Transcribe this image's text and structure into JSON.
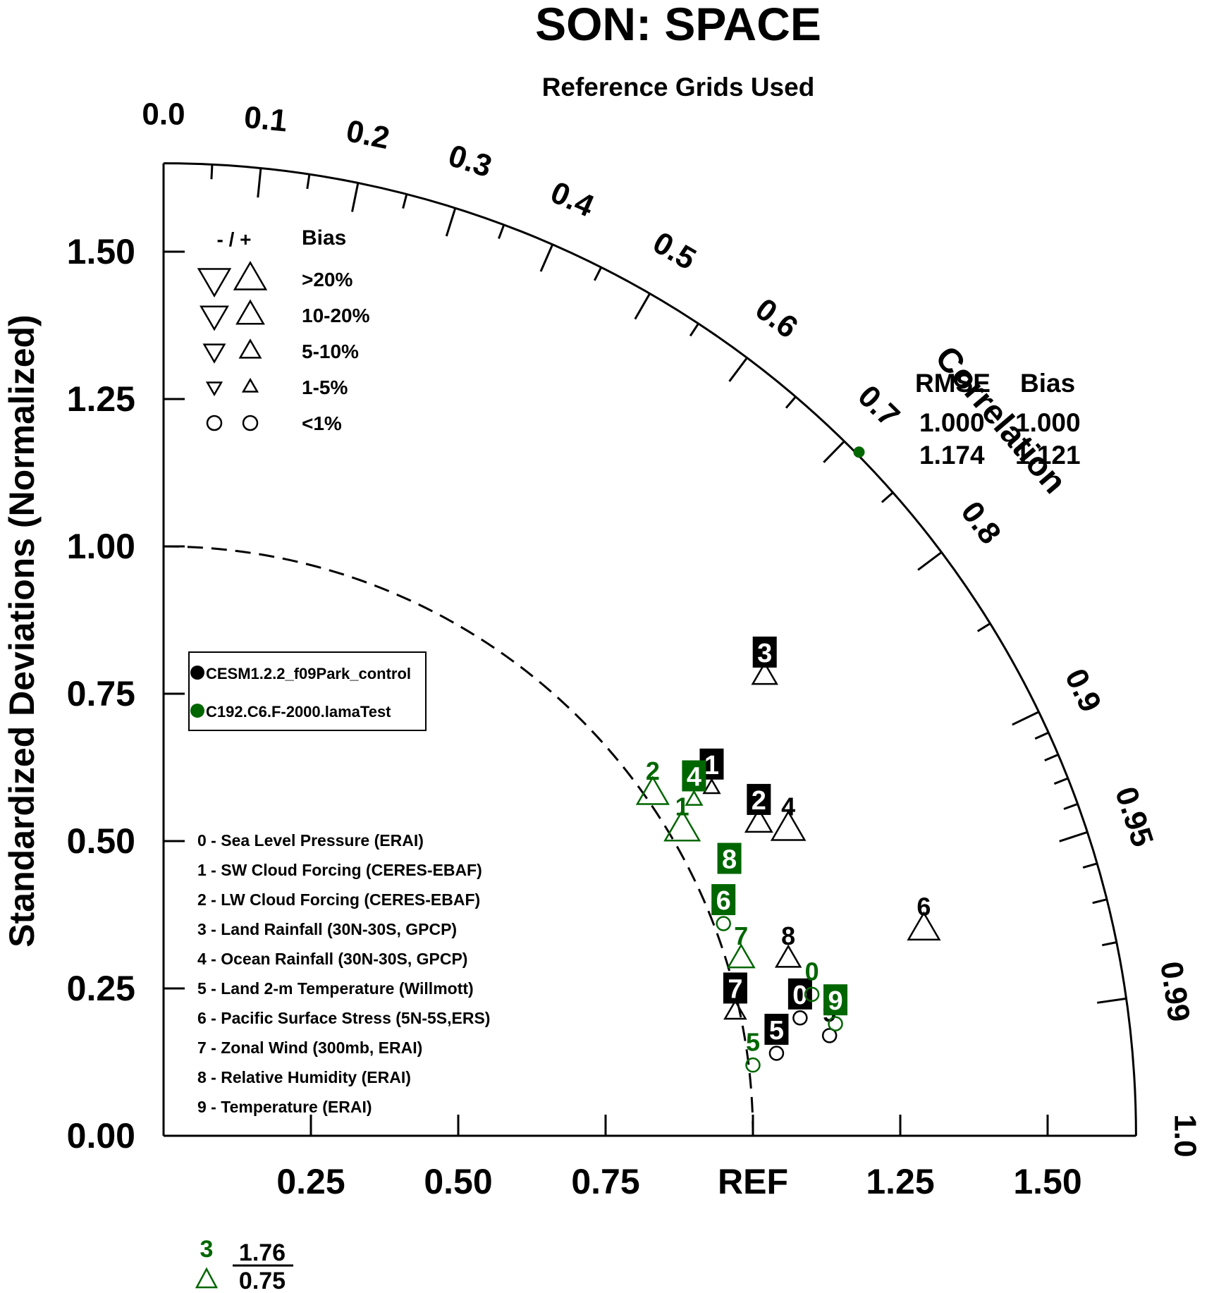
{
  "chart_data": {
    "type": "scatter",
    "subtype": "taylor-diagram",
    "title": "SON: SPACE",
    "subtitle": "Reference Grids Used",
    "ylabel": "Standardized Deviations (Normalized)",
    "arc_label": "Correlation",
    "ref_label": "REF",
    "xlim": [
      0,
      1.65
    ],
    "ylim": [
      0,
      1.65
    ],
    "x_tick_labels": [
      {
        "value": 0.25,
        "label": "0.25"
      },
      {
        "value": 0.5,
        "label": "0.50"
      },
      {
        "value": 0.75,
        "label": "0.75"
      },
      {
        "value": 1.0,
        "label": "REF"
      },
      {
        "value": 1.25,
        "label": "1.25"
      },
      {
        "value": 1.5,
        "label": "1.50"
      }
    ],
    "y_tick_labels": [
      {
        "value": 0.0,
        "label": "0.00"
      },
      {
        "value": 0.25,
        "label": "0.25"
      },
      {
        "value": 0.5,
        "label": "0.50"
      },
      {
        "value": 0.75,
        "label": "0.75"
      },
      {
        "value": 1.0,
        "label": "1.00"
      },
      {
        "value": 1.25,
        "label": "1.25"
      },
      {
        "value": 1.5,
        "label": "1.50"
      }
    ],
    "correlation_labels": [
      "0.0",
      "0.1",
      "0.2",
      "0.3",
      "0.4",
      "0.5",
      "0.6",
      "0.7",
      "0.8",
      "0.9",
      "0.95",
      "0.99",
      "1.0"
    ],
    "correlation_values": [
      0.0,
      0.1,
      0.2,
      0.3,
      0.4,
      0.5,
      0.6,
      0.7,
      0.8,
      0.9,
      0.95,
      0.99,
      1.0
    ],
    "minor_correlation_ticks": [
      0.05,
      0.15,
      0.25,
      0.35,
      0.45,
      0.55,
      0.65,
      0.75,
      0.85,
      0.91,
      0.92,
      0.93,
      0.94,
      0.96,
      0.97,
      0.98
    ],
    "reference_arc_std": 1.0,
    "bias_legend": {
      "header_sign": "- / +",
      "header": "Bias",
      "rows": [
        {
          "label": ">20%",
          "scale": 1.0,
          "shape": "triangle"
        },
        {
          "label": "10-20%",
          "scale": 0.85,
          "shape": "triangle"
        },
        {
          "label": "5-10%",
          "scale": 0.65,
          "shape": "triangle"
        },
        {
          "label": "1-5%",
          "scale": 0.45,
          "shape": "triangle"
        },
        {
          "label": "<1%",
          "scale": 0.7,
          "shape": "circle"
        }
      ]
    },
    "series": [
      {
        "name": "CESM1.2.2_f09Park_control",
        "color": "#000000",
        "label_style": "boxed"
      },
      {
        "name": "C192.C6.F-2000.lamaTest",
        "color": "#006600",
        "label_style": "plain"
      }
    ],
    "variables": [
      "0 - Sea Level Pressure (ERAI)",
      "1 - SW Cloud Forcing (CERES-EBAF)",
      "2 - LW Cloud Forcing (CERES-EBAF)",
      "3 - Land Rainfall (30N-30S, GPCP)",
      "4 - Ocean Rainfall (30N-30S, GPCP)",
      "5 - Land 2-m Temperature (Willmott)",
      "6 - Pacific Surface Stress (5N-5S,ERS)",
      "7 - Zonal Wind (300mb, ERAI)",
      "8 - Relative Humidity (ERAI)",
      "9 - Temperature (ERAI)"
    ],
    "points": [
      {
        "series": 0,
        "label": "0",
        "x": 1.08,
        "y": 0.2,
        "marker": "circle",
        "scale": 1.0
      },
      {
        "series": 0,
        "label": "1",
        "x": 0.93,
        "y": 0.59,
        "marker": "tri-up",
        "scale": 0.45
      },
      {
        "series": 0,
        "label": "2",
        "x": 1.01,
        "y": 0.53,
        "marker": "tri-up",
        "scale": 0.75
      },
      {
        "series": 0,
        "label": "3",
        "x": 1.02,
        "y": 0.78,
        "marker": "tri-up",
        "scale": 0.7
      },
      {
        "series": 0,
        "label": "4",
        "x": 1.06,
        "y": 0.52,
        "marker": "tri-up",
        "scale": 0.95,
        "label_style": "plain"
      },
      {
        "series": 0,
        "label": "5",
        "x": 1.04,
        "y": 0.14,
        "marker": "circle",
        "scale": 1.0
      },
      {
        "series": 0,
        "label": "6",
        "x": 1.29,
        "y": 0.35,
        "marker": "tri-up",
        "scale": 0.9,
        "label_style": "plain"
      },
      {
        "series": 0,
        "label": "7",
        "x": 0.97,
        "y": 0.21,
        "marker": "tri-up",
        "scale": 0.6
      },
      {
        "series": 0,
        "label": "8",
        "x": 1.06,
        "y": 0.3,
        "marker": "tri-up",
        "scale": 0.7,
        "label_style": "plain"
      },
      {
        "series": 0,
        "label": "9",
        "x": 1.13,
        "y": 0.17,
        "marker": "circle",
        "scale": 1.0,
        "label_style": "plain"
      },
      {
        "series": 1,
        "label": "0",
        "x": 1.1,
        "y": 0.24,
        "marker": "circle",
        "scale": 1.0
      },
      {
        "series": 1,
        "label": "1",
        "x": 0.88,
        "y": 0.52,
        "marker": "tri-up",
        "scale": 1.0
      },
      {
        "series": 1,
        "label": "2",
        "x": 0.83,
        "y": 0.58,
        "marker": "tri-up",
        "scale": 0.9
      },
      {
        "series": 1,
        "label": "4",
        "x": 0.9,
        "y": 0.57,
        "marker": "tri-up",
        "scale": 0.45,
        "label_style": "boxed"
      },
      {
        "series": 1,
        "label": "5",
        "x": 1.0,
        "y": 0.12,
        "marker": "circle",
        "scale": 1.0
      },
      {
        "series": 1,
        "label": "6",
        "x": 0.95,
        "y": 0.36,
        "marker": "circle",
        "scale": 1.0,
        "label_style": "boxed"
      },
      {
        "series": 1,
        "label": "7",
        "x": 0.98,
        "y": 0.3,
        "marker": "tri-up",
        "scale": 0.75
      },
      {
        "series": 1,
        "label": "8",
        "x": 0.96,
        "y": 0.43,
        "marker": "none",
        "scale": 0,
        "label_style": "boxed"
      },
      {
        "series": 1,
        "label": "9",
        "x": 1.14,
        "y": 0.19,
        "marker": "circle",
        "scale": 1.0,
        "label_style": "boxed"
      }
    ],
    "off_scale": [
      {
        "series": 1,
        "label": "3",
        "std": "1.76",
        "corr": "0.75",
        "marker": "tri-up"
      }
    ],
    "arc_points": [
      {
        "series": 1,
        "x": 1.18,
        "y": 1.16
      }
    ],
    "stats_table": {
      "headers": [
        "RMSE",
        "Bias"
      ],
      "rows": [
        {
          "rmse": "1.000",
          "bias": "1.000"
        },
        {
          "rmse": "1.174",
          "bias": "1.121"
        }
      ]
    }
  }
}
